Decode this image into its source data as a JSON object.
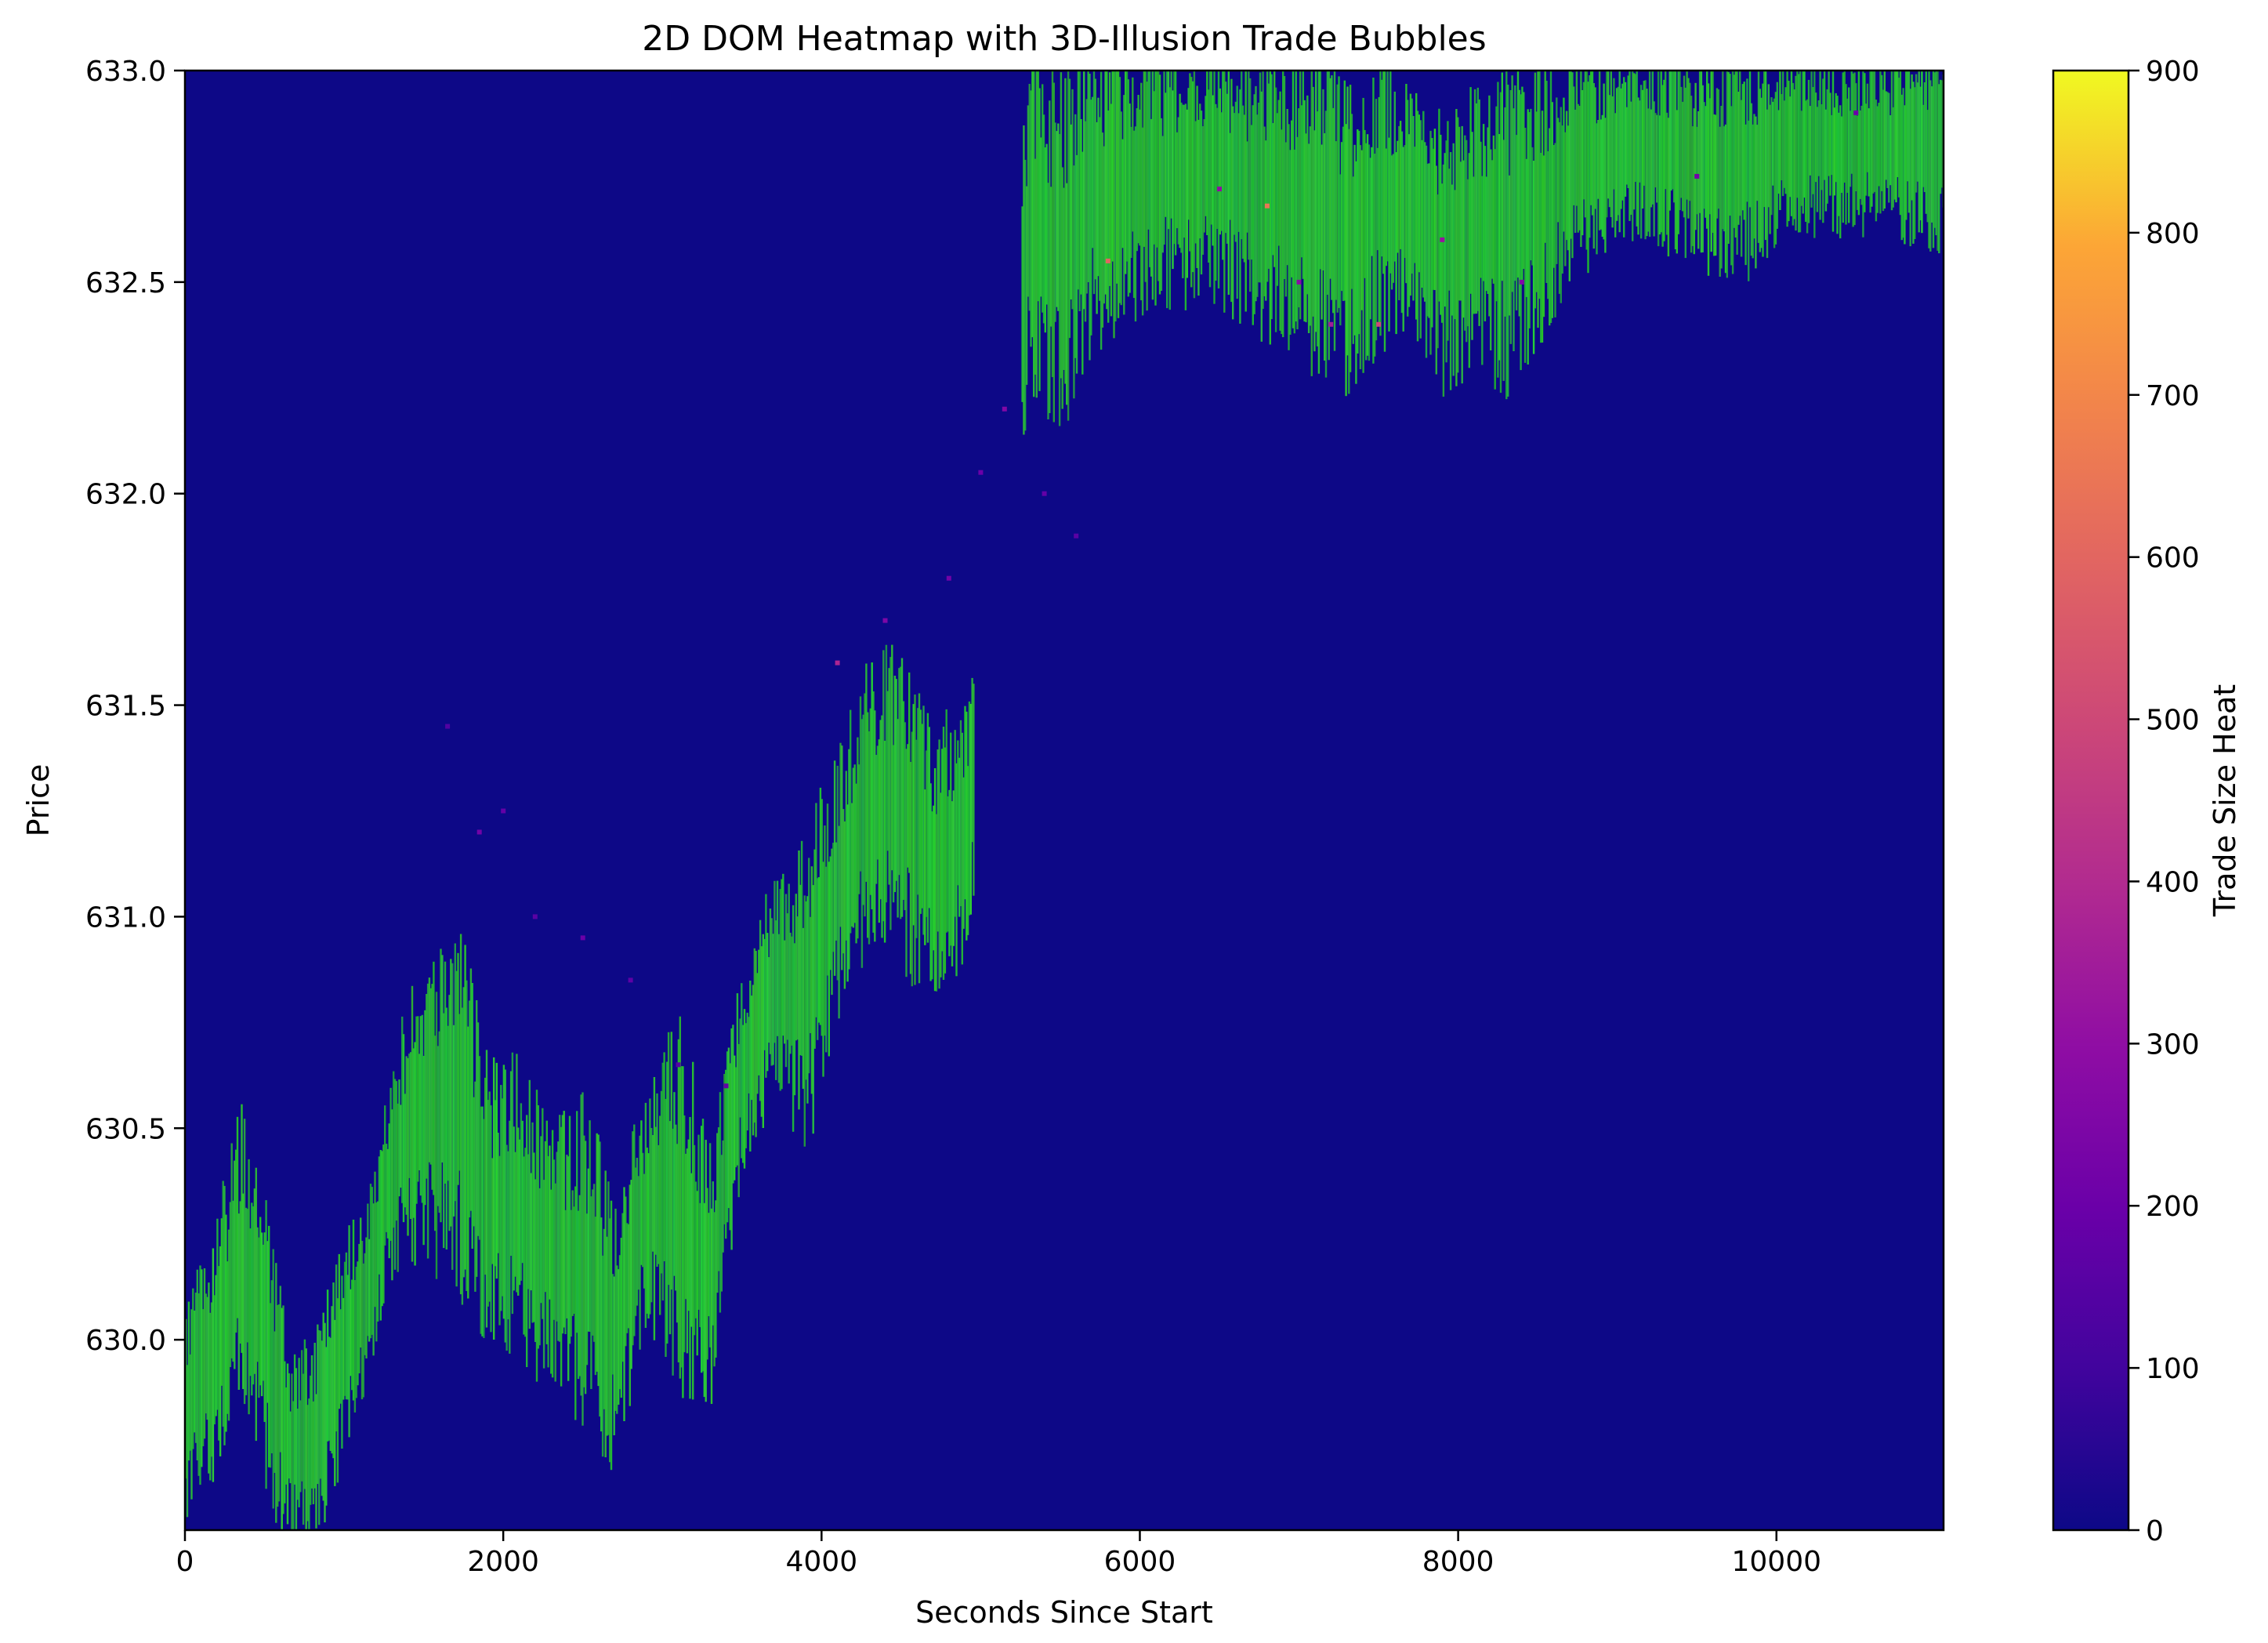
{
  "chart_data": {
    "type": "heatmap",
    "title": "2D DOM Heatmap with 3D-Illusion Trade Bubbles",
    "xlabel": "Seconds Since Start",
    "ylabel": "Price",
    "xlim": [
      0,
      11050
    ],
    "ylim": [
      629.55,
      633.0
    ],
    "x_ticks": [
      0,
      2000,
      4000,
      6000,
      8000,
      10000
    ],
    "x_tick_labels": [
      "0",
      "2000",
      "4000",
      "6000",
      "8000",
      "10000"
    ],
    "y_ticks": [
      630.0,
      630.5,
      631.0,
      631.5,
      632.0,
      632.5,
      633.0
    ],
    "y_tick_labels": [
      "630.0",
      "630.5",
      "631.0",
      "631.5",
      "632.0",
      "632.5",
      "633.0"
    ],
    "background_color": "#0d0887",
    "colorbar": {
      "label": "Trade Size Heat",
      "colormap": "plasma",
      "range": [
        0,
        900
      ],
      "ticks": [
        0,
        100,
        200,
        300,
        400,
        500,
        600,
        700,
        800,
        900
      ],
      "tick_labels": [
        "0",
        "100",
        "200",
        "300",
        "400",
        "500",
        "600",
        "700",
        "800",
        "900"
      ]
    },
    "bubble_color": "#2ecc2e",
    "price_band": {
      "description_free": true,
      "x": [
        0,
        200,
        350,
        500,
        650,
        800,
        1000,
        1150,
        1300,
        1500,
        1700,
        1900,
        2100,
        2300,
        2500,
        2700,
        2900,
        3100,
        3300,
        3500,
        3700,
        3900,
        4100,
        4300,
        4500,
        4700,
        4900,
        5300,
        5500,
        5700,
        5900,
        6100,
        6300,
        6500,
        6700,
        6900,
        7100,
        7300,
        7500,
        7700,
        7900,
        8100,
        8300,
        8500,
        8700,
        8900,
        9200,
        9500,
        9800,
        10100,
        10400,
        10700,
        11050
      ],
      "low": [
        629.6,
        629.75,
        629.9,
        629.7,
        629.55,
        629.55,
        629.75,
        629.95,
        630.2,
        630.25,
        630.2,
        630.05,
        630.0,
        629.95,
        629.85,
        629.75,
        630.1,
        629.95,
        629.9,
        630.45,
        630.6,
        630.5,
        630.8,
        631.0,
        630.95,
        630.85,
        630.95,
        632.3,
        632.2,
        632.4,
        632.45,
        632.5,
        632.5,
        632.5,
        632.45,
        632.4,
        632.35,
        632.3,
        632.4,
        632.45,
        632.3,
        632.35,
        632.3,
        632.4,
        632.55,
        632.6,
        632.65,
        632.55,
        632.55,
        632.65,
        632.65,
        632.65,
        632.6
      ],
      "high": [
        630.05,
        630.25,
        630.5,
        630.3,
        629.95,
        629.95,
        630.2,
        630.3,
        630.65,
        630.85,
        630.95,
        630.6,
        630.6,
        630.45,
        630.5,
        630.3,
        630.55,
        630.7,
        630.4,
        630.85,
        631.05,
        631.15,
        631.35,
        631.55,
        631.6,
        631.4,
        631.45,
        632.95,
        632.95,
        633.0,
        633.0,
        633.0,
        633.0,
        633.0,
        633.0,
        633.0,
        633.0,
        632.9,
        633.0,
        632.9,
        632.85,
        632.9,
        632.95,
        632.95,
        633.0,
        633.0,
        633.0,
        633.0,
        633.0,
        633.0,
        633.0,
        633.0,
        633.0
      ]
    },
    "trade_heat_points": [
      {
        "x": 1650,
        "y": 631.45,
        "heat": 140
      },
      {
        "x": 1850,
        "y": 631.2,
        "heat": 220
      },
      {
        "x": 2000,
        "y": 631.25,
        "heat": 180
      },
      {
        "x": 2200,
        "y": 631.0,
        "heat": 160
      },
      {
        "x": 2500,
        "y": 630.95,
        "heat": 200
      },
      {
        "x": 2800,
        "y": 630.85,
        "heat": 170
      },
      {
        "x": 3100,
        "y": 630.65,
        "heat": 150
      },
      {
        "x": 3400,
        "y": 630.6,
        "heat": 180
      },
      {
        "x": 4100,
        "y": 631.6,
        "heat": 380
      },
      {
        "x": 4400,
        "y": 631.7,
        "heat": 250
      },
      {
        "x": 4800,
        "y": 631.8,
        "heat": 220
      },
      {
        "x": 5000,
        "y": 632.05,
        "heat": 200
      },
      {
        "x": 5150,
        "y": 632.2,
        "heat": 260
      },
      {
        "x": 5400,
        "y": 632.0,
        "heat": 180
      },
      {
        "x": 5600,
        "y": 631.9,
        "heat": 160
      },
      {
        "x": 5800,
        "y": 632.55,
        "heat": 600
      },
      {
        "x": 6500,
        "y": 632.72,
        "heat": 300
      },
      {
        "x": 6800,
        "y": 632.68,
        "heat": 650
      },
      {
        "x": 7000,
        "y": 632.5,
        "heat": 280
      },
      {
        "x": 7200,
        "y": 632.4,
        "heat": 350
      },
      {
        "x": 7500,
        "y": 632.4,
        "heat": 500
      },
      {
        "x": 7900,
        "y": 632.6,
        "heat": 320
      },
      {
        "x": 8400,
        "y": 632.5,
        "heat": 260
      },
      {
        "x": 9500,
        "y": 632.75,
        "heat": 220
      },
      {
        "x": 10500,
        "y": 632.9,
        "heat": 200
      }
    ]
  }
}
